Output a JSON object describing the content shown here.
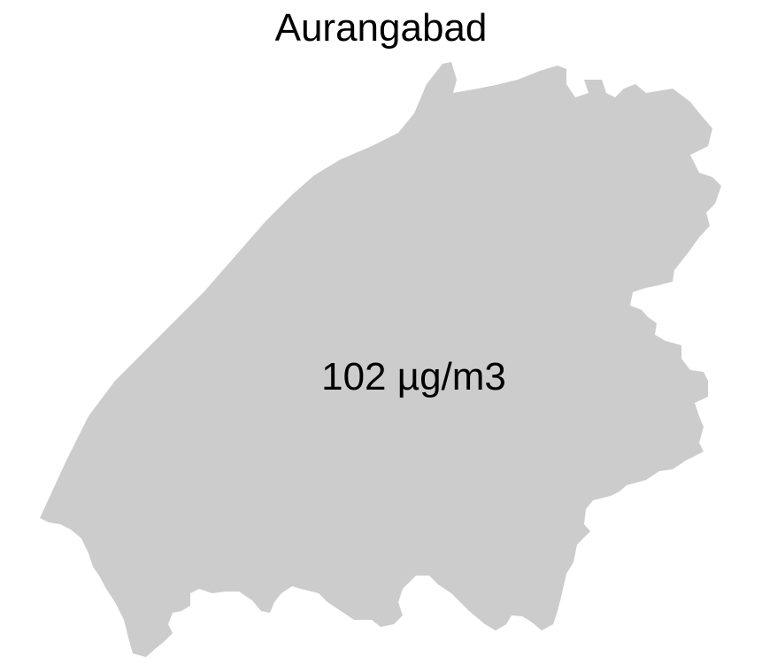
{
  "map": {
    "title": "Aurangabad",
    "region_value_label": "102 µg/m3",
    "region_fill_color": "#cccccc",
    "background_color": "#ffffff"
  }
}
